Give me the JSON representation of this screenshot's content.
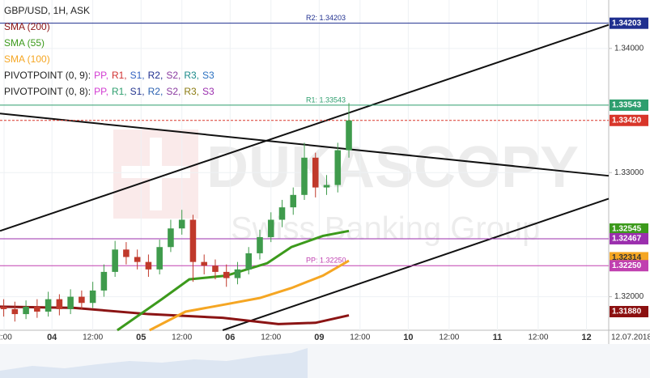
{
  "chart_data": {
    "type": "candlestick",
    "symbol": "GBP/USD, 1H, ASK",
    "watermark": "DUKASCOPY",
    "watermark_sub": "Swiss Banking Group",
    "date_label": "12.07.2018",
    "xlim": [
      0,
      164
    ],
    "ylim": [
      1.3173,
      1.3439
    ],
    "yticks": [
      {
        "value": 1.34,
        "label": "1.34000"
      },
      {
        "value": 1.33,
        "label": "1.33000"
      },
      {
        "value": 1.32,
        "label": "1.32000"
      }
    ],
    "xticks": [
      {
        "value": 1.1,
        "label": "2:00"
      },
      {
        "value": 14,
        "label": "04"
      },
      {
        "value": 25,
        "label": "12:00"
      },
      {
        "value": 38,
        "label": "05"
      },
      {
        "value": 49,
        "label": "12:00"
      },
      {
        "value": 62,
        "label": "06"
      },
      {
        "value": 73,
        "label": "12:00"
      },
      {
        "value": 86,
        "label": "09"
      },
      {
        "value": 97,
        "label": "12:00"
      },
      {
        "value": 110,
        "label": "10"
      },
      {
        "value": 121,
        "label": "12:00"
      },
      {
        "value": 134,
        "label": "11"
      },
      {
        "value": 145,
        "label": "12:00"
      },
      {
        "value": 158,
        "label": "12"
      }
    ],
    "up_color": "#3f9b4c",
    "down_color": "#c0392b",
    "x": [
      1,
      4,
      7,
      10,
      13,
      16,
      19,
      22,
      25,
      28,
      31,
      34,
      37,
      40,
      43,
      46,
      49,
      52,
      55,
      58,
      61,
      64,
      67,
      70,
      73,
      76,
      79,
      82,
      85,
      88,
      91,
      94
    ],
    "open": [
      1.3192,
      1.319,
      1.3186,
      1.3192,
      1.3188,
      1.3198,
      1.319,
      1.32,
      1.3195,
      1.3205,
      1.322,
      1.3238,
      1.3232,
      1.3228,
      1.3222,
      1.324,
      1.3255,
      1.3262,
      1.3228,
      1.3225,
      1.322,
      1.3215,
      1.3222,
      1.3235,
      1.3248,
      1.3262,
      1.3272,
      1.3282,
      1.3312,
      1.3288,
      1.329,
      1.3318
    ],
    "high": [
      1.3198,
      1.3196,
      1.3197,
      1.3198,
      1.3204,
      1.3202,
      1.3206,
      1.3205,
      1.3212,
      1.3226,
      1.3245,
      1.3244,
      1.3238,
      1.3234,
      1.3246,
      1.3262,
      1.327,
      1.3266,
      1.3234,
      1.323,
      1.3226,
      1.3228,
      1.324,
      1.3254,
      1.3268,
      1.3278,
      1.3288,
      1.3324,
      1.3316,
      1.3298,
      1.3324,
      1.3356
    ],
    "low": [
      1.3184,
      1.318,
      1.3182,
      1.3183,
      1.3184,
      1.3185,
      1.3186,
      1.319,
      1.3191,
      1.32,
      1.3216,
      1.3226,
      1.3222,
      1.3216,
      1.3218,
      1.3236,
      1.325,
      1.3212,
      1.3218,
      1.3214,
      1.3208,
      1.321,
      1.3218,
      1.323,
      1.3244,
      1.3256,
      1.3266,
      1.3278,
      1.328,
      1.3282,
      1.3284,
      1.3312
    ],
    "close": [
      1.319,
      1.3186,
      1.3192,
      1.3188,
      1.3198,
      1.319,
      1.32,
      1.3195,
      1.3205,
      1.322,
      1.3238,
      1.3232,
      1.3228,
      1.3222,
      1.324,
      1.3255,
      1.3262,
      1.3228,
      1.3225,
      1.322,
      1.3215,
      1.3222,
      1.3235,
      1.3248,
      1.3262,
      1.3272,
      1.3282,
      1.3312,
      1.3288,
      1.329,
      1.3318,
      1.3342
    ],
    "series": [
      {
        "name": "SMA (200)",
        "color": "#8b1414",
        "x": [
          0,
          20,
          40,
          60,
          75,
          85,
          94
        ],
        "values": [
          1.3192,
          1.3191,
          1.3186,
          1.3183,
          1.3178,
          1.3179,
          1.3185
        ]
      },
      {
        "name": "SMA (55)",
        "color": "#3c9a1c",
        "x": [
          31.6,
          43.6,
          51,
          61,
          72,
          78.5,
          87,
          94
        ],
        "values": [
          1.3173,
          1.3198,
          1.3214,
          1.3217,
          1.3227,
          1.324,
          1.3249,
          1.3253
        ]
      },
      {
        "name": "SMA (100)",
        "color": "#f5a623",
        "x": [
          40.3,
          50,
          61,
          70,
          78.5,
          87,
          94
        ],
        "values": [
          1.3173,
          1.3188,
          1.3194,
          1.3199,
          1.3207,
          1.3217,
          1.3229
        ]
      }
    ],
    "pivot_legends": [
      {
        "name": "PIVOTPOINT (0, 9):",
        "items": [
          {
            "text": "PP,",
            "color": "#d23bd2"
          },
          {
            "text": "R1,",
            "color": "#d03030"
          },
          {
            "text": "S1,",
            "color": "#3060c0"
          },
          {
            "text": "R2,",
            "color": "#1f2f8f"
          },
          {
            "text": "S2,",
            "color": "#8a3aa0"
          },
          {
            "text": "R3,",
            "color": "#1a8a8a"
          },
          {
            "text": "S3",
            "color": "#2a70c0"
          }
        ]
      },
      {
        "name": "PIVOTPOINT (0, 8):",
        "items": [
          {
            "text": "PP,",
            "color": "#d23bd2"
          },
          {
            "text": "R1,",
            "color": "#2e9e6e"
          },
          {
            "text": "S1,",
            "color": "#23348f"
          },
          {
            "text": "R2,",
            "color": "#2a60b0"
          },
          {
            "text": "S2,",
            "color": "#8a3aa0"
          },
          {
            "text": "R3,",
            "color": "#8a7a10"
          },
          {
            "text": "S3",
            "color": "#9b2fae"
          }
        ]
      }
    ],
    "trendlines": [
      {
        "x": [
          0,
          164
        ],
        "values": [
          1.3253,
          1.3419
        ]
      },
      {
        "x": [
          0,
          164
        ],
        "values": [
          1.33476,
          1.32974
        ]
      },
      {
        "x": [
          60,
          164
        ],
        "values": [
          1.3173,
          1.3279
        ]
      }
    ],
    "levels": [
      {
        "value": 1.34203,
        "value_label": "1.34203",
        "text": "R2: 1.34203",
        "color": "#1f2f8f",
        "line": "solid"
      },
      {
        "value": 1.33543,
        "value_label": "1.33543",
        "text": "R1: 1.33543",
        "color": "#2e9e6e",
        "line": "solid"
      },
      {
        "value": 1.3342,
        "value_label": "1.33420",
        "color": "#d8362a",
        "line": "dashed"
      },
      {
        "value": 1.32545,
        "value_label": "1.32545",
        "color": "#3c9a1c"
      },
      {
        "value": 1.32467,
        "value_label": "1.32467",
        "color": "#9b2fae",
        "line": "solid"
      },
      {
        "value": 1.32314,
        "value_label": "1.32314",
        "color": "#f5a623"
      },
      {
        "value": 1.3225,
        "value_label": "1.32250",
        "text": "PP: 1.32250",
        "color": "#c040b0",
        "line": "solid"
      },
      {
        "value": 1.3188,
        "value_label": "1.31880",
        "color": "#8b1010"
      }
    ]
  }
}
